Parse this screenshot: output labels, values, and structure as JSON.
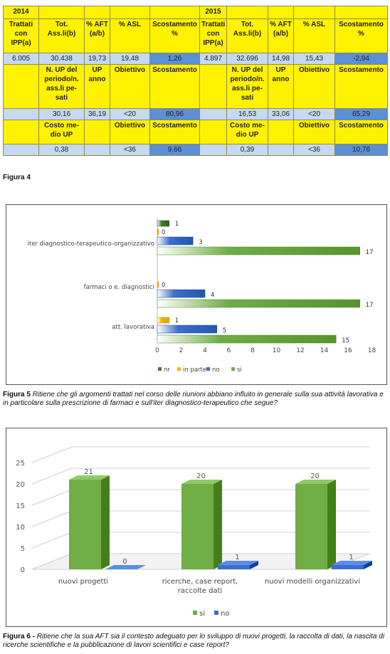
{
  "table": {
    "rows": [
      [
        "2014",
        "",
        "",
        "",
        "",
        "2015",
        "",
        "",
        "",
        ""
      ],
      [
        "Trattati con IPP(a)",
        "Tot. Ass.li(b)",
        "% AFT (a/b)",
        "% ASL",
        "Scostamento %",
        "Trattati con IPP(a)",
        "Tot. Ass.li(b)",
        "% AFT (a/b)",
        "% ASL",
        "Scostamento %"
      ],
      [
        "6.005",
        "30.438",
        "19,73",
        "19,48",
        "1,26",
        "4.897",
        "32.696",
        "14,98",
        "15,43",
        "-2,94"
      ],
      [
        "",
        "N. UP del periodo/n. ass.li pe-sati",
        "UP anno",
        "Obiettivo",
        "Scostamento",
        "",
        "N. UP del periodo/n. ass.li pe-sati",
        "UP anno",
        "Obiettivo",
        "Scostamento"
      ],
      [
        "",
        "30,16",
        "36,19",
        "<20",
        "80,96",
        "",
        "16,53",
        "33,06",
        "<20",
        "65,29"
      ],
      [
        "",
        "Costo me-dio UP",
        "",
        "Obiettivo",
        "Scostamento",
        "",
        "Costo me-dio UP",
        "",
        "Obiettivo",
        "Scostamento"
      ],
      [
        "",
        "0,38",
        "",
        "<36",
        "9,66",
        "",
        "0,39",
        "",
        "<36",
        "10,76"
      ]
    ]
  },
  "captions": {
    "fig4": "Figura 4",
    "fig5_label": "Figura 5",
    "fig5_text": "Ritiene che gli argomenti trattati nel corso delle riunioni abbiano influito in generale sulla sua attività lavorativa e in particolare sulla prescrizione di farmaci e sull'iter diagnostico-terapeutico che segue?",
    "fig6_label": "Figura 6 -",
    "fig6_text": "Ritiene che la sua AFT sia il contesto adeguato per lo sviluppo di nuovi progetti, la raccolta di dati, la nascita di ricerche scientifiche e la pubblicazione di lavori scientifici e case report?"
  },
  "chart_data": [
    {
      "type": "bar",
      "orientation": "horizontal",
      "categories": [
        "iter diagnostico-terapeutico-organizzativo",
        "farmaci o e. diagnostici",
        "att. lavorativa"
      ],
      "series": [
        {
          "name": "nr",
          "color": "#4a7a2c",
          "values": [
            1,
            0,
            0
          ]
        },
        {
          "name": "in parte",
          "color": "#f2b800",
          "values": [
            0,
            0,
            1
          ]
        },
        {
          "name": "no",
          "color": "#3c6fc9",
          "values": [
            3,
            4,
            5
          ]
        },
        {
          "name": "si",
          "color": "#70ad47",
          "values": [
            17,
            17,
            15
          ]
        }
      ],
      "data_labels": [
        [
          "1",
          "0",
          "3",
          "17"
        ],
        [
          "",
          "0",
          "4",
          "17"
        ],
        [
          "",
          "1",
          "5",
          "15"
        ]
      ],
      "xticks": [
        "0",
        "2",
        "4",
        "6",
        "8",
        "10",
        "12",
        "14",
        "16",
        "18"
      ],
      "xlim": [
        0,
        18
      ],
      "legend_position": "bottom",
      "title": "",
      "xlabel": "",
      "ylabel": ""
    },
    {
      "type": "bar",
      "style": "3d-column",
      "categories": [
        "nuovi progetti",
        "ricerche, case report, raccolte dati",
        "nuovi modelli organizzativi"
      ],
      "series": [
        {
          "name": "si",
          "color": "#70ad47",
          "values": [
            21,
            20,
            20
          ]
        },
        {
          "name": "no",
          "color": "#3c6fc9",
          "values": [
            0,
            1,
            1
          ]
        }
      ],
      "yticks": [
        "0",
        "5",
        "10",
        "15",
        "20",
        "25"
      ],
      "ylim": [
        0,
        25
      ],
      "legend_position": "bottom",
      "title": "",
      "xlabel": "",
      "ylabel": ""
    }
  ]
}
